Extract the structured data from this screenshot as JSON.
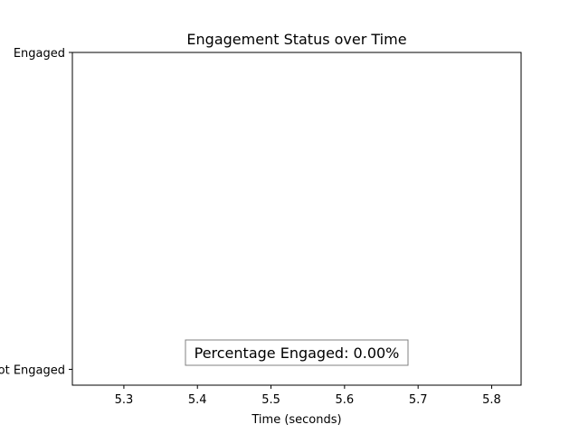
{
  "chart_data": {
    "type": "line",
    "title": "Engagement Status over Time",
    "xlabel": "Time (seconds)",
    "ylabel": "",
    "xlim": [
      5.23,
      5.84
    ],
    "ylim": [
      -0.05,
      1.0
    ],
    "x_ticks": [
      5.3,
      5.4,
      5.5,
      5.6,
      5.7,
      5.8
    ],
    "x_tick_labels": [
      "5.3",
      "5.4",
      "5.5",
      "5.6",
      "5.7",
      "5.8"
    ],
    "y_ticks": [
      0,
      1
    ],
    "y_tick_labels": [
      "Not Engaged",
      "Engaged"
    ],
    "series": [
      {
        "x": [],
        "y": []
      }
    ],
    "annotation": "Percentage Engaged: 0.00%",
    "grid": false,
    "legend": "none"
  }
}
